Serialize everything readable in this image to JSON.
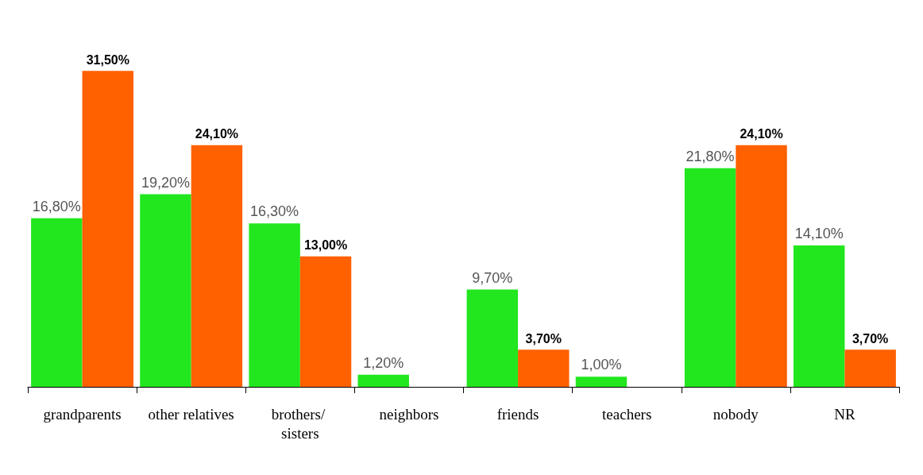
{
  "chart_data": {
    "type": "bar",
    "categories": [
      "grandparents",
      "other relatives",
      "brothers/ sisters",
      "neighbors",
      "friends",
      "teachers",
      "nobody",
      "NR"
    ],
    "series": [
      {
        "color": "#22e61e",
        "values": [
          16.8,
          19.2,
          16.3,
          1.2,
          9.7,
          1.0,
          21.8,
          14.1
        ],
        "value_labels": [
          "16,80%",
          "19,20%",
          "16,30%",
          "1,20%",
          "9,70%",
          "1,00%",
          "21,80%",
          "14,10%"
        ]
      },
      {
        "color": "#ff6000",
        "values": [
          31.5,
          24.1,
          13.0,
          null,
          3.7,
          null,
          24.1,
          3.7
        ],
        "value_labels": [
          "31,50%",
          "24,10%",
          "13,00%",
          null,
          "3,70%",
          null,
          "24,10%",
          "3,70%"
        ]
      }
    ]
  }
}
